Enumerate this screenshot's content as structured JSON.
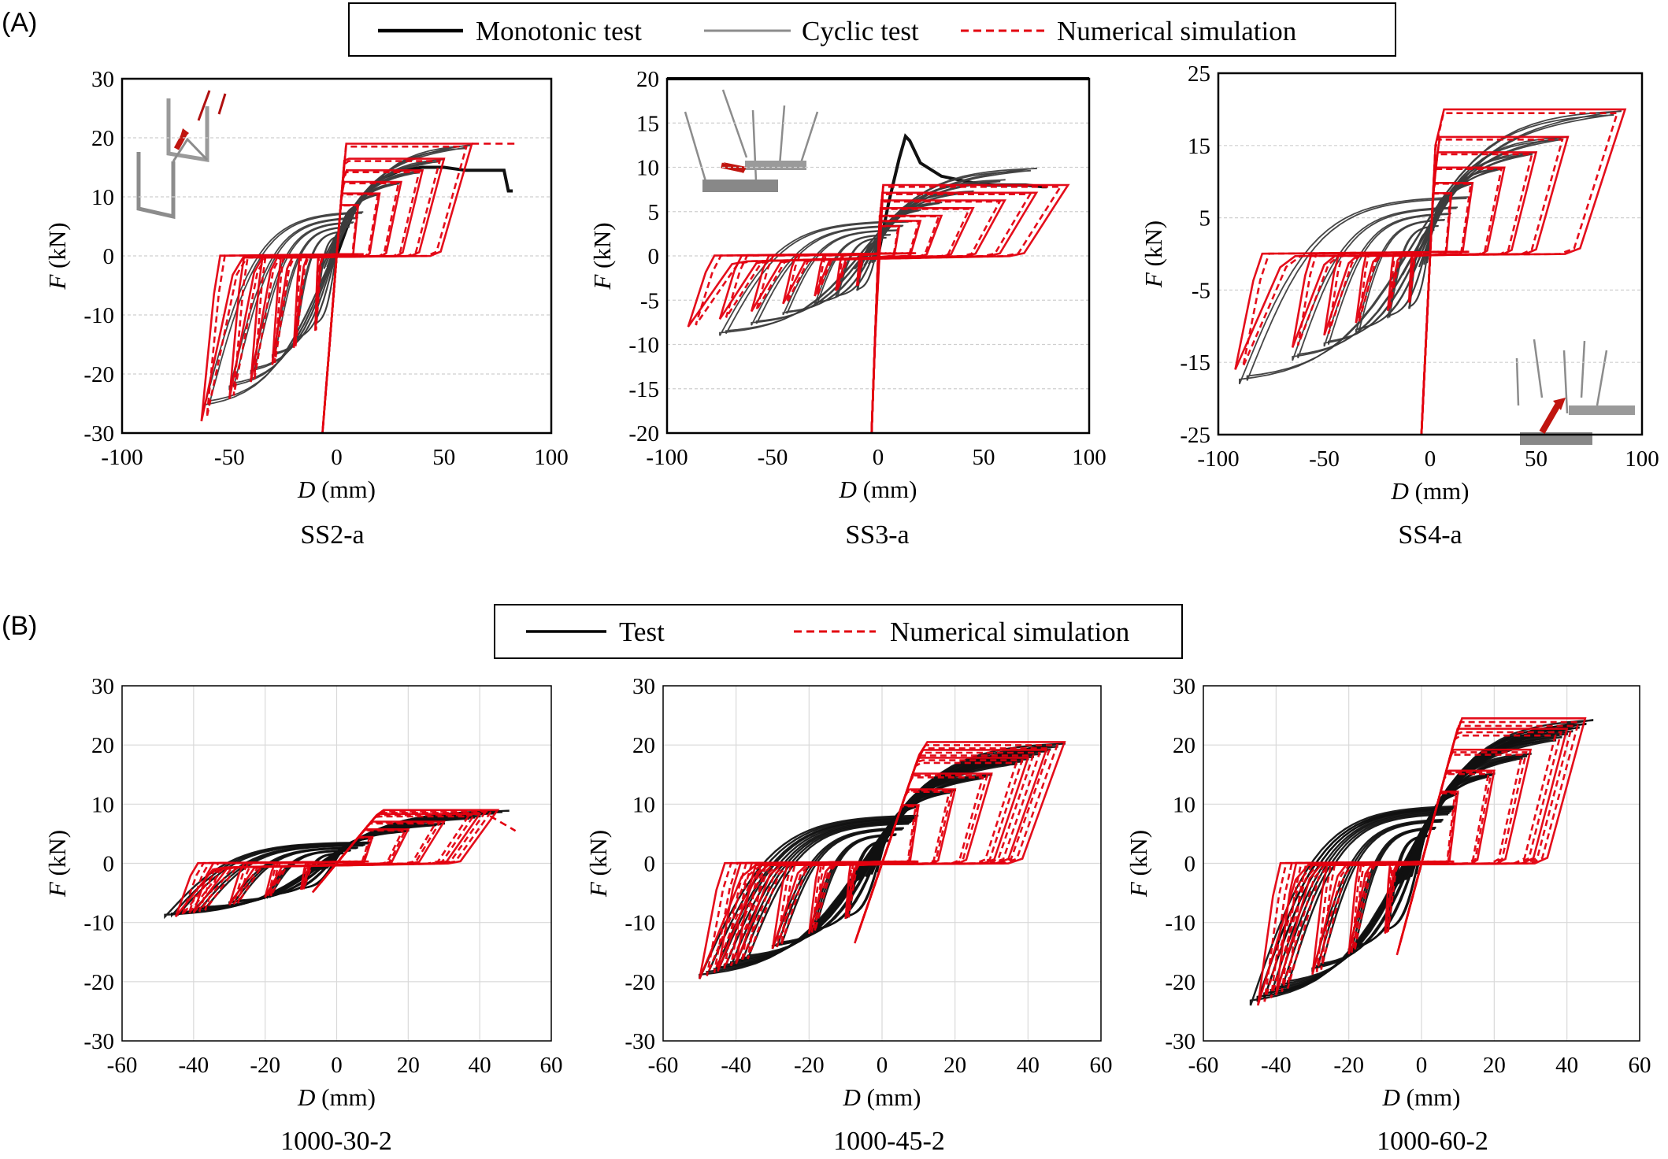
{
  "figure": {
    "panel_a_label": "(A)",
    "panel_b_label": "(B)",
    "legend_a": [
      {
        "label": "Monotonic test",
        "color": "#000000",
        "style": "solid-thick"
      },
      {
        "label": "Cyclic test",
        "color": "#8c8c8c",
        "style": "solid"
      },
      {
        "label": "Numerical simulation",
        "color": "#e3000f",
        "style": "dashed"
      }
    ],
    "legend_b": [
      {
        "label": "Test",
        "color": "#000000",
        "style": "solid"
      },
      {
        "label": "Numerical simulation",
        "color": "#e3000f",
        "style": "dashed"
      }
    ],
    "axis_var_x": "D",
    "axis_unit_x": " (mm)",
    "axis_var_y": "F",
    "axis_unit_y": " (kN)",
    "colors": {
      "test": "#1a1a1a",
      "cyclic": "#8c8c8c",
      "simulation": "#e3000f"
    }
  },
  "chart_data": [
    {
      "type": "line",
      "title": "SS2-a",
      "xlabel": "D (mm)",
      "ylabel": "F (kN)",
      "xlim": [
        -100,
        100
      ],
      "ylim": [
        -30,
        30
      ],
      "xticks": [
        -100,
        -50,
        0,
        50,
        100
      ],
      "yticks": [
        -30,
        -20,
        -10,
        0,
        10,
        20,
        30
      ],
      "grid": "horizontal",
      "series": [
        {
          "name": "Monotonic test",
          "kind": "monotonic",
          "x": [
            0,
            5,
            10,
            20,
            30,
            40,
            50,
            60,
            70,
            78,
            80,
            82
          ],
          "y": [
            0,
            5,
            9,
            13,
            14.5,
            15,
            15,
            14.5,
            14.5,
            14.5,
            11,
            11
          ]
        },
        {
          "name": "Cyclic test",
          "kind": "cyclic",
          "amplitudes": [
            10,
            20,
            30,
            40,
            50,
            62
          ],
          "fpos": 19,
          "fneg": -26,
          "k": 1.1,
          "kneg": 0.8
        },
        {
          "name": "Numerical simulation",
          "kind": "simulation",
          "amplitudes": [
            10,
            20,
            30,
            40,
            50,
            63
          ],
          "fpos": 19,
          "fneg": -28,
          "k": 1.2,
          "kneg": 0.9,
          "tail": [
            [
              63,
              19
            ],
            [
              84,
              19
            ]
          ]
        }
      ]
    },
    {
      "type": "line",
      "title": "SS3-a",
      "xlabel": "D (mm)",
      "ylabel": "F (kN)",
      "xlim": [
        -100,
        100
      ],
      "ylim": [
        -20,
        20
      ],
      "xticks": [
        -100,
        -50,
        0,
        50,
        100
      ],
      "yticks": [
        -20,
        -15,
        -10,
        -5,
        0,
        5,
        10,
        15,
        20
      ],
      "grid": "horizontal",
      "series": [
        {
          "name": "Monotonic test",
          "kind": "monotonic",
          "x": [
            0,
            5,
            10,
            13,
            15,
            20,
            30,
            40,
            50,
            60,
            70,
            78,
            80
          ],
          "y": [
            0,
            6,
            11,
            13.5,
            13,
            10.5,
            9,
            8.5,
            8,
            8,
            8,
            7.8,
            7.8
          ]
        },
        {
          "name": "Cyclic test",
          "kind": "cyclic",
          "amplitudes": [
            10,
            20,
            30,
            45,
            60,
            75
          ],
          "fpos": 10,
          "fneg": -9,
          "k": 1.1,
          "kneg": 1.1
        },
        {
          "name": "Numerical simulation",
          "kind": "simulation",
          "amplitudes": [
            10,
            20,
            30,
            45,
            60,
            75,
            90
          ],
          "fpos": 8,
          "fneg": -8,
          "k": 1.2,
          "kneg": 1.2
        }
      ]
    },
    {
      "type": "line",
      "title": "SS4-a",
      "xlabel": "D (mm)",
      "ylabel": "F (kN)",
      "xlim": [
        -100,
        100
      ],
      "ylim": [
        -25,
        25
      ],
      "xticks": [
        -100,
        -50,
        0,
        50,
        100
      ],
      "yticks": [
        -25,
        -15,
        -5,
        5,
        15,
        25
      ],
      "grid": "horizontal",
      "series": [
        {
          "name": "Cyclic test",
          "kind": "cyclic",
          "amplitudes": [
            10,
            20,
            35,
            50,
            65,
            90
          ],
          "fpos": 20,
          "fneg": -18,
          "k": 1.0,
          "kneg": 1.0
        },
        {
          "name": "Numerical simulation",
          "kind": "simulation",
          "amplitudes": [
            10,
            20,
            35,
            50,
            65,
            92
          ],
          "fpos": 20,
          "fneg": -16,
          "k": 1.1,
          "kneg": 1.1
        }
      ]
    },
    {
      "type": "line",
      "title": "1000-30-2",
      "xlabel": "D (mm)",
      "ylabel": "F (kN)",
      "xlim": [
        -60,
        60
      ],
      "ylim": [
        -30,
        30
      ],
      "xticks": [
        -60,
        -40,
        -20,
        0,
        20,
        40,
        60
      ],
      "yticks": [
        -30,
        -20,
        -10,
        0,
        10,
        20,
        30
      ],
      "grid": "both",
      "series": [
        {
          "name": "Test",
          "kind": "cyclic",
          "amplitudes": [
            10,
            20,
            30,
            40,
            48
          ],
          "fpos": 9,
          "fneg": -9,
          "k": 0.25,
          "kneg": 0.25
        },
        {
          "name": "Numerical simulation",
          "kind": "simulation",
          "amplitudes": [
            10,
            20,
            30,
            40,
            45
          ],
          "fpos": 9,
          "fneg": -9,
          "k": 0.27,
          "kneg": 0.27,
          "tail": [
            [
              40,
              9
            ],
            [
              50,
              5.5
            ]
          ]
        }
      ]
    },
    {
      "type": "line",
      "title": "1000-45-2",
      "xlabel": "D (mm)",
      "ylabel": "F (kN)",
      "xlim": [
        -60,
        60
      ],
      "ylim": [
        -30,
        30
      ],
      "xticks": [
        -60,
        -40,
        -20,
        0,
        20,
        40,
        60
      ],
      "yticks": [
        -30,
        -20,
        -10,
        0,
        10,
        20,
        30
      ],
      "grid": "both",
      "series": [
        {
          "name": "Test",
          "kind": "cyclic",
          "amplitudes": [
            10,
            20,
            30,
            40,
            45,
            50
          ],
          "fpos": 20.5,
          "fneg": -19.5,
          "k": 0.55,
          "kneg": 0.55
        },
        {
          "name": "Numerical simulation",
          "kind": "simulation",
          "amplitudes": [
            10,
            20,
            30,
            40,
            45,
            50
          ],
          "fpos": 20.5,
          "fneg": -19.5,
          "k": 0.6,
          "kneg": 0.6
        }
      ]
    },
    {
      "type": "line",
      "title": "1000-60-2",
      "xlabel": "D (mm)",
      "ylabel": "F (kN)",
      "xlim": [
        -60,
        60
      ],
      "ylim": [
        -30,
        30
      ],
      "xticks": [
        -60,
        -40,
        -20,
        0,
        20,
        40,
        60
      ],
      "yticks": [
        -30,
        -20,
        -10,
        0,
        10,
        20,
        30
      ],
      "grid": "both",
      "series": [
        {
          "name": "Test",
          "kind": "cyclic",
          "amplitudes": [
            10,
            20,
            30,
            40,
            45,
            47
          ],
          "fpos": 24.5,
          "fneg": -24,
          "k": 0.8,
          "kneg": 0.8
        },
        {
          "name": "Numerical simulation",
          "kind": "simulation",
          "amplitudes": [
            10,
            20,
            30,
            40,
            45
          ],
          "fpos": 24.5,
          "fneg": -24,
          "k": 0.85,
          "kneg": 0.85
        }
      ]
    }
  ]
}
